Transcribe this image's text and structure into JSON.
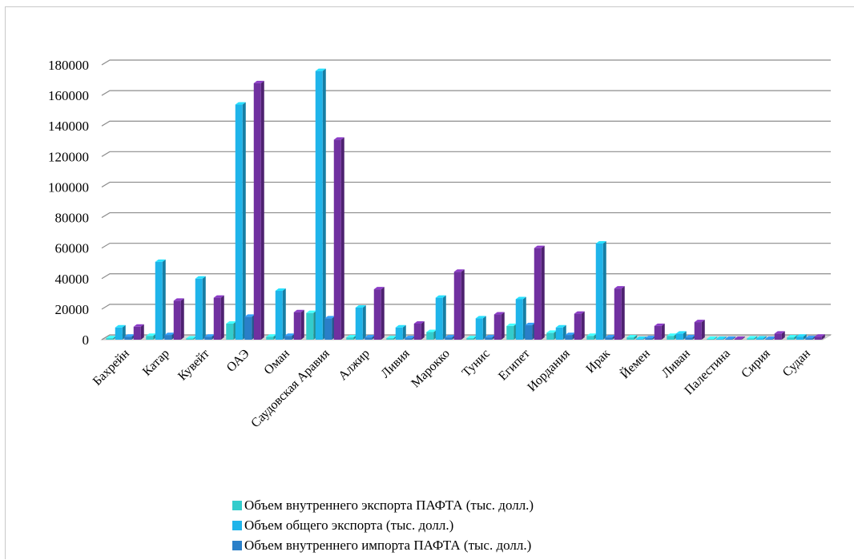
{
  "chart_data": {
    "type": "bar",
    "title": "",
    "xlabel": "",
    "ylabel": "",
    "ylim": [
      0,
      180000
    ],
    "yticks": [
      0,
      20000,
      40000,
      60000,
      80000,
      100000,
      120000,
      140000,
      160000,
      180000
    ],
    "ytick_labels": [
      "0",
      "20000",
      "40000",
      "60000",
      "80000",
      "100000",
      "120000",
      "140000",
      "160000",
      "180000"
    ],
    "grid": true,
    "legend_position": "bottom",
    "categories": [
      "Бахрейн",
      "Катар",
      "Кувейт",
      "ОАЭ",
      "Оман",
      "Саудовская Аравия",
      "Алжир",
      "Ливия",
      "Марокко",
      "Тунис",
      "Египет",
      "Иордания",
      "Ирак",
      "Йемен",
      "Ливан",
      "Палестина",
      "Сирия",
      "Судан"
    ],
    "series": [
      {
        "name": "Объем внутреннего экспорта  ПАФТА (тыс. долл.)",
        "color": "#33cccc",
        "values": [
          1000,
          2500,
          800,
          10500,
          2000,
          17500,
          1500,
          1000,
          5000,
          1000,
          9000,
          4500,
          2500,
          1500,
          2500,
          500,
          800,
          1500
        ]
      },
      {
        "name": "Объем общего экспорта (тыс. долл.)",
        "color": "#1fb4ea",
        "values": [
          8000,
          51000,
          40000,
          154000,
          32000,
          176000,
          21000,
          8000,
          27500,
          14000,
          26500,
          8000,
          63000,
          500,
          4000,
          500,
          800,
          2000
        ]
      },
      {
        "name": "Объем внутреннего импорта  ПАФТА (тыс. долл.)",
        "color": "#2a7fc8",
        "values": [
          2000,
          3000,
          2000,
          15000,
          2500,
          14000,
          1500,
          1000,
          1500,
          1500,
          9500,
          3000,
          1500,
          1000,
          1500,
          500,
          500,
          1000
        ]
      },
      {
        "name": "",
        "color": "#7030a0",
        "values": [
          8500,
          25500,
          27500,
          168000,
          18000,
          131000,
          33000,
          10500,
          44500,
          16500,
          60000,
          17000,
          33500,
          9000,
          11500,
          500,
          4000,
          2000
        ]
      }
    ]
  }
}
